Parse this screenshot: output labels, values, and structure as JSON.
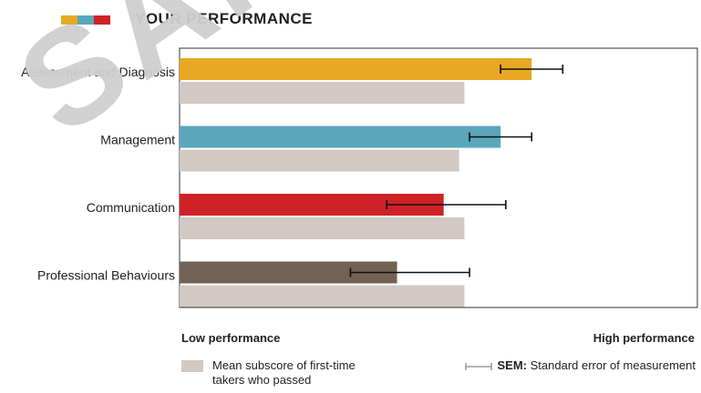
{
  "header": {
    "title": "YOUR PERFORMANCE",
    "swatch_colors": [
      "#e8a823",
      "#5aa6bb",
      "#cf2128"
    ]
  },
  "watermark": "SAMPLE",
  "chart_data": {
    "type": "bar",
    "orientation": "horizontal",
    "categories": [
      "Assessment and Diagnosis",
      "Management",
      "Communication",
      "Professional Behaviours"
    ],
    "series": [
      {
        "values": [
          68,
          62,
          51,
          42
        ],
        "error_low": [
          62,
          56,
          40,
          33
        ],
        "error_high": [
          74,
          68,
          63,
          56
        ],
        "colors": [
          "#e8a823",
          "#5aa6bb",
          "#cf2128",
          "#736153"
        ]
      },
      {
        "name": "Mean subscore of first-time takers who passed",
        "values": [
          55,
          54,
          55,
          55
        ],
        "color": "#d3c8c3"
      }
    ],
    "xlim": [
      0,
      100
    ],
    "x_low_label": "Low performance",
    "x_high_label": "High performance",
    "legend": {
      "mean_label": "Mean subscore of first-time takers who passed",
      "sem_bold": "SEM:",
      "sem_text": "Standard error of measurement"
    }
  }
}
